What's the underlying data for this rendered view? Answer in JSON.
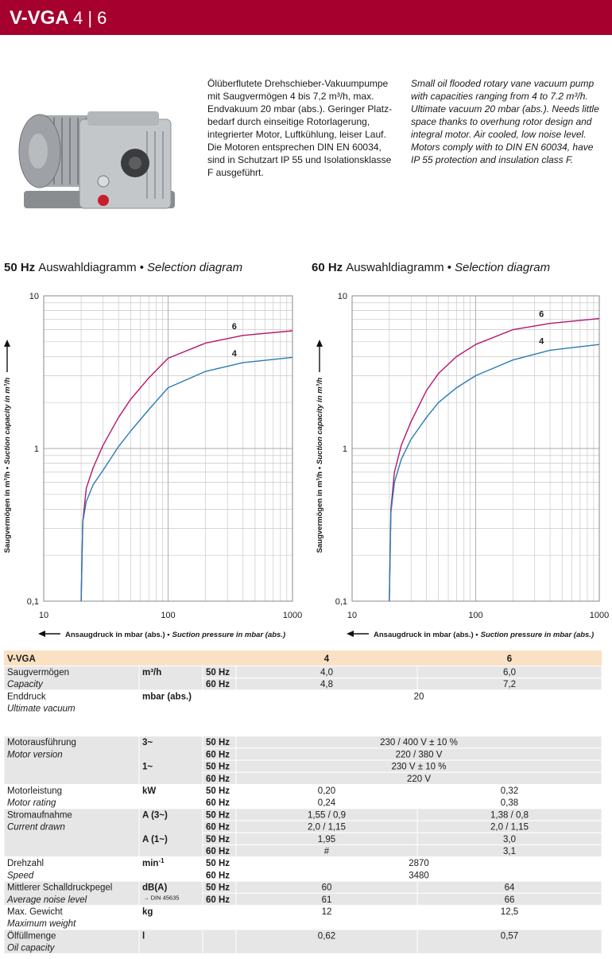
{
  "header": {
    "title": "V-VGA",
    "models": "4 | 6"
  },
  "intro": {
    "de": [
      "Ölüberflutete Drehschieber-Vakuumpumpe",
      "mit Saugvermögen 4 bis 7,2 m³/h, max.",
      "Endvakuum 20 mbar (abs.). Geringer Platz-",
      "bedarf durch einseitige Rotorlagerung,",
      "integrierter Motor, Luftkühlung, leiser Lauf.",
      "Die Motoren entsprechen DIN EN 60034,",
      "sind in Schutzart IP 55 und Isolationsklasse",
      "F ausgeführt."
    ],
    "en": [
      "Small oil flooded rotary vane vacuum pump",
      "with capacities ranging from 4 to 7.2 m³/h.",
      "Ultimate vacuum 20 mbar (abs.). Needs little",
      "space thanks to overhung rotor design and",
      "integral motor. Air cooled, low noise level.",
      "Motors comply with to DIN EN 60034, have",
      "IP 55 protection and insulation class F."
    ]
  },
  "chart_data": [
    {
      "type": "line",
      "title": [
        "50 Hz",
        "Auswahldiagramm •",
        "Selection diagram"
      ],
      "y_label": [
        "Saugvermögen in m³/h •",
        "Suction capacity in m³/h"
      ],
      "x_label": [
        "Ansaugdruck in mbar (abs.) •",
        "Suction pressure in mbar (abs.)"
      ],
      "x": [
        20,
        20.6,
        22,
        25,
        30,
        40,
        50,
        70,
        100,
        200,
        400,
        1000
      ],
      "series": [
        {
          "name": "6",
          "color": "#b3176f",
          "values": [
            0.1,
            0.33,
            0.55,
            0.75,
            1.05,
            1.6,
            2.1,
            2.9,
            3.9,
            4.9,
            5.5,
            5.9
          ]
        },
        {
          "name": "4",
          "color": "#2a7bb4",
          "values": [
            0.1,
            0.33,
            0.45,
            0.58,
            0.72,
            1.03,
            1.3,
            1.8,
            2.5,
            3.2,
            3.65,
            3.95
          ]
        }
      ],
      "xlim": [
        10,
        1000
      ],
      "xticks": [
        10,
        100,
        1000
      ],
      "ylim": [
        0.1,
        10
      ],
      "yticks": [
        {
          "value": 0.1,
          "label": "0,1"
        },
        1,
        10
      ],
      "xscale": "log",
      "yscale": "log",
      "grid": true
    },
    {
      "type": "line",
      "title": [
        "60 Hz",
        "Auswahldiagramm •",
        "Selection diagram"
      ],
      "y_label": [
        "Saugvermögen in m³/h •",
        "Suction capacity in m³/h"
      ],
      "x_label": [
        "Ansaugdruck in mbar (abs.) •",
        "Suction pressure in mbar (abs.)"
      ],
      "x": [
        20,
        20.6,
        22,
        25,
        30,
        40,
        50,
        70,
        100,
        200,
        400,
        1000
      ],
      "series": [
        {
          "name": "6",
          "color": "#b3176f",
          "values": [
            0.1,
            0.4,
            0.7,
            1.05,
            1.5,
            2.4,
            3.1,
            4.0,
            4.8,
            6.0,
            6.6,
            7.1
          ]
        },
        {
          "name": "4",
          "color": "#2a7bb4",
          "values": [
            0.1,
            0.38,
            0.6,
            0.85,
            1.15,
            1.6,
            2.0,
            2.5,
            3.0,
            3.8,
            4.4,
            4.8
          ]
        }
      ],
      "xlim": [
        10,
        1000
      ],
      "xticks": [
        10,
        100,
        1000
      ],
      "ylim": [
        0.1,
        10
      ],
      "yticks": [
        {
          "value": 0.1,
          "label": "0,1"
        },
        1,
        10
      ],
      "xscale": "log",
      "yscale": "log",
      "grid": true
    }
  ],
  "table": {
    "header": [
      "V-VGA",
      "4",
      "6"
    ],
    "groups": [
      {
        "label": [
          "Saugvermögen",
          "Capacity"
        ],
        "rows": [
          {
            "unit": "m³/h",
            "hz": "50 Hz",
            "values": [
              "4,0",
              "6,0"
            ]
          },
          {
            "hz": "60 Hz",
            "values": [
              "4,8",
              "7,2"
            ]
          }
        ]
      },
      {
        "label": [
          "Enddruck",
          "Ultimate vacuum"
        ],
        "rows": [
          {
            "unit": "mbar (abs.)",
            "values": [
              "20"
            ]
          }
        ]
      },
      {
        "label": [
          "Motorausführung",
          "Motor version"
        ],
        "rows": [
          {
            "unit": "3~",
            "hz": "50 Hz",
            "values": [
              "230 / 400 V ± 10 %"
            ]
          },
          {
            "hz": "60 Hz",
            "values": [
              "220 / 380 V"
            ]
          },
          {
            "unit": "1~",
            "hz": "50 Hz",
            "values": [
              "230 V ± 10 %"
            ]
          },
          {
            "hz": "60 Hz",
            "values": [
              "220 V"
            ]
          }
        ]
      },
      {
        "label": [
          "Motorleistung",
          "Motor rating"
        ],
        "rows": [
          {
            "unit": "kW",
            "hz": "50 Hz",
            "values": [
              "0,20",
              "0,32"
            ]
          },
          {
            "hz": "60 Hz",
            "values": [
              "0,24",
              "0,38"
            ]
          }
        ]
      },
      {
        "label": [
          "Stromaufnahme",
          "Current drawn"
        ],
        "rows": [
          {
            "unit": "A (3~)",
            "hz": "50 Hz",
            "values": [
              "1,55 / 0,9",
              "1,38 / 0,8"
            ]
          },
          {
            "hz": "60 Hz",
            "values": [
              "2,0 / 1,15",
              "2,0 / 1,15"
            ]
          },
          {
            "unit": "A (1~)",
            "hz": "50 Hz",
            "values": [
              "1,95",
              "3,0"
            ]
          },
          {
            "hz": "60 Hz",
            "values": [
              "#",
              "3,1"
            ]
          }
        ]
      },
      {
        "label": [
          "Drehzahl",
          "Speed"
        ],
        "rows": [
          {
            "unit": "min",
            "unit_sup": "-1",
            "hz": "50 Hz",
            "values": [
              "2870"
            ]
          },
          {
            "hz": "60 Hz",
            "values": [
              "3480"
            ]
          }
        ]
      },
      {
        "label": [
          "Mittlerer Schalldruckpegel",
          "Average noise level"
        ],
        "rows": [
          {
            "unit": "dB(A)",
            "hz": "50 Hz",
            "values": [
              "60",
              "64"
            ]
          },
          {
            "unit_note": "→ DIN 45635",
            "hz": "60 Hz",
            "values": [
              "61",
              "66"
            ]
          }
        ]
      },
      {
        "label": [
          "Max. Gewicht",
          "Maximum weight"
        ],
        "rows": [
          {
            "unit": "kg",
            "values": [
              "12",
              "12,5"
            ]
          }
        ]
      },
      {
        "label": [
          "Ölfüllmenge",
          "Oil capacity"
        ],
        "rows": [
          {
            "unit": "l",
            "values": [
              "0,62",
              "0,57"
            ]
          }
        ]
      }
    ]
  }
}
